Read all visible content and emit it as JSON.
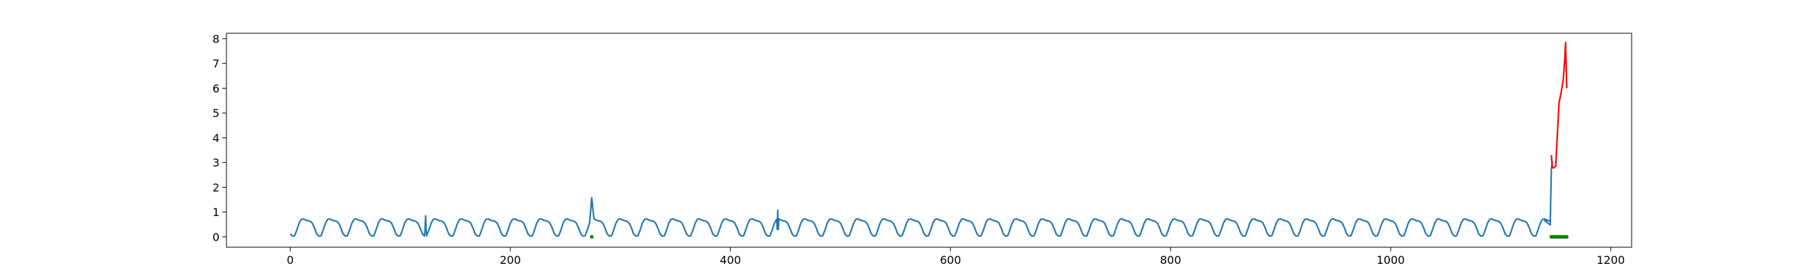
{
  "chart_data": {
    "type": "line",
    "title": "",
    "xlabel": "",
    "ylabel": "",
    "xlim": [
      -58,
      1219
    ],
    "ylim": [
      -0.42,
      8.22
    ],
    "x_ticks": [
      0,
      200,
      400,
      600,
      800,
      1000,
      1200
    ],
    "y_ticks": [
      0,
      1,
      2,
      3,
      4,
      5,
      6,
      7,
      8
    ],
    "grid": false,
    "legend": "none",
    "series": [
      {
        "kind": "line",
        "color": "#1f77b4",
        "periodic_baseline": {
          "x_start": 0,
          "x_end": 1146,
          "step": 2,
          "period": 24,
          "min": 0.03,
          "max": 0.85,
          "secondary_peak": 0.45
        },
        "spikes": [
          {
            "x": 123,
            "y": 0.85
          },
          {
            "x": 274,
            "y": 1.58
          },
          {
            "x": 443,
            "y": 1.08
          },
          {
            "x": 1146,
            "y": 2.75
          }
        ],
        "points": [
          [
            1140,
            0.66
          ],
          [
            1143,
            0.55
          ],
          [
            1145,
            0.48
          ],
          [
            1146,
            2.75
          ],
          [
            1147,
            3.05
          ]
        ]
      },
      {
        "kind": "line",
        "color": "#ff0000",
        "points": [
          [
            1146,
            3.3
          ],
          [
            1147,
            2.8
          ],
          [
            1148,
            2.78
          ],
          [
            1150,
            2.85
          ],
          [
            1152,
            4.6
          ],
          [
            1153,
            5.4
          ],
          [
            1155,
            5.85
          ],
          [
            1157,
            6.4
          ],
          [
            1158,
            7.1
          ],
          [
            1159,
            7.85
          ],
          [
            1160,
            6.0
          ]
        ]
      },
      {
        "kind": "scatter",
        "color": "#008000",
        "points": [
          [
            274,
            0.0
          ],
          [
            1146,
            0.0
          ],
          [
            1147,
            0.0
          ],
          [
            1148,
            0.0
          ],
          [
            1149,
            0.0
          ],
          [
            1150,
            0.0
          ],
          [
            1151,
            0.0
          ],
          [
            1152,
            0.0
          ],
          [
            1153,
            0.0
          ],
          [
            1154,
            0.0
          ],
          [
            1155,
            0.0
          ],
          [
            1156,
            0.0
          ],
          [
            1157,
            0.0
          ],
          [
            1158,
            0.0
          ],
          [
            1159,
            0.0
          ],
          [
            1160,
            0.0
          ]
        ]
      }
    ]
  }
}
